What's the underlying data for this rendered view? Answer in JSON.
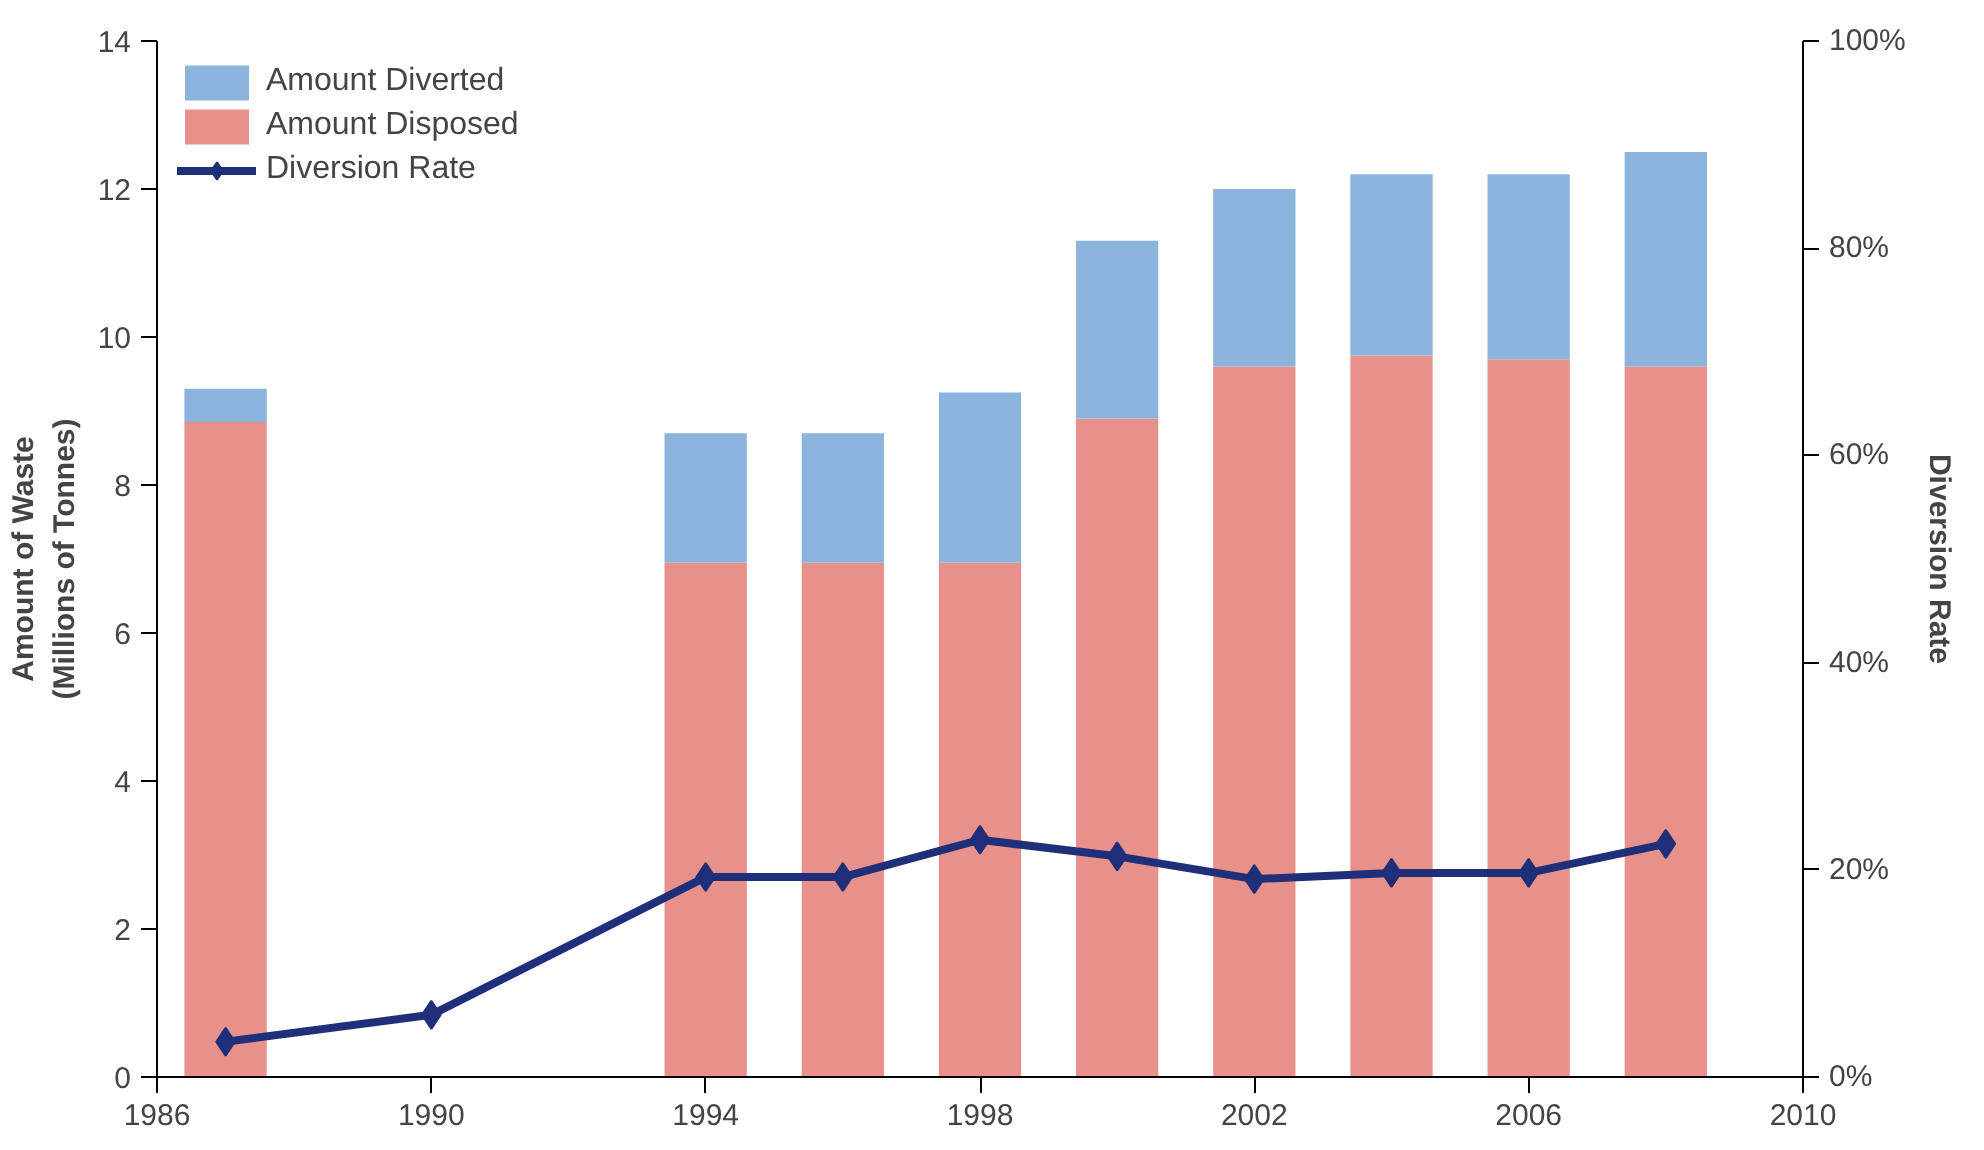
{
  "chart_data": {
    "type": "bar",
    "stacked": true,
    "x": [
      1987,
      1990,
      1994,
      1996,
      1998,
      2000,
      2002,
      2004,
      2006,
      2008
    ],
    "series": [
      {
        "name": "Amount Disposed",
        "color": "#e8918a",
        "values": [
          8.85,
          null,
          6.95,
          6.95,
          6.95,
          8.9,
          9.6,
          9.75,
          9.7,
          9.6
        ]
      },
      {
        "name": "Amount Diverted",
        "color": "#8ab4dc",
        "values": [
          0.45,
          null,
          1.75,
          1.75,
          2.3,
          2.4,
          2.4,
          2.45,
          2.5,
          2.9
        ]
      },
      {
        "name": "Diversion Rate",
        "type": "line",
        "axis": "y2",
        "color": "#1f2f7a",
        "values": [
          3.4,
          6,
          19.3,
          19.3,
          22.9,
          21.3,
          19.1,
          19.7,
          19.7,
          22.5
        ]
      }
    ],
    "xlim": [
      1986,
      2010
    ],
    "xticks": [
      1986,
      1990,
      1994,
      1998,
      2002,
      2006,
      2010
    ],
    "ylim": [
      0,
      14
    ],
    "yticks": [
      0,
      2,
      4,
      6,
      8,
      10,
      12,
      14
    ],
    "y2lim": [
      0,
      100
    ],
    "y2ticks": [
      {
        "value": 0,
        "label": "0%"
      },
      {
        "value": 20,
        "label": "20%"
      },
      {
        "value": 40,
        "label": "40%"
      },
      {
        "value": 60,
        "label": "60%"
      },
      {
        "value": 80,
        "label": "80%"
      },
      {
        "value": 100,
        "label": "100%"
      }
    ],
    "ylabel": "Amount of Waste\n(Millions of Tonnes)",
    "y2label": "Diversion Rate",
    "legend": "top left",
    "grid": false,
    "marker": "diamond",
    "line_style": "solid"
  }
}
